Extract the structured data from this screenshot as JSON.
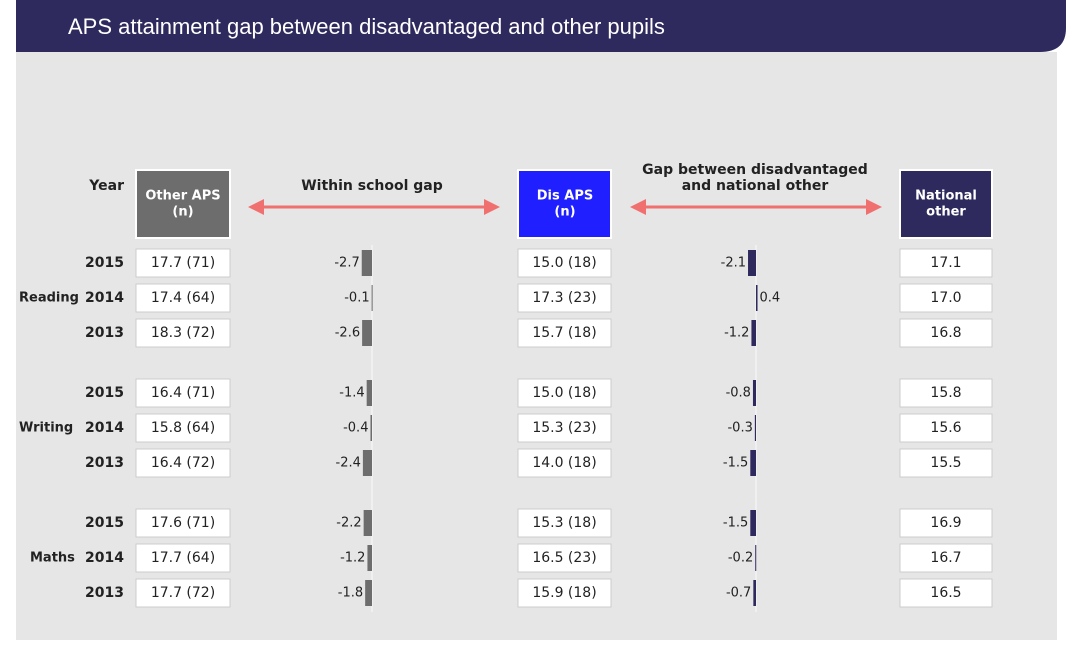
{
  "header": {
    "title": "APS attainment gap between disadvantaged and other pupils"
  },
  "columns": {
    "year": "Year",
    "other": [
      "Other APS",
      "(n)"
    ],
    "within_gap": "Within school gap",
    "dis": [
      "Dis APS",
      "(n)"
    ],
    "national_gap": [
      "Gap between disadvantaged",
      "and national other"
    ],
    "national": [
      "National",
      "other"
    ]
  },
  "groups": [
    {
      "subject": "Reading",
      "rows": [
        {
          "year": 2015,
          "other": "17.7 (71)",
          "within_gap": -2.7,
          "dis": "15.0 (18)",
          "national_gap": -2.1,
          "national": "17.1"
        },
        {
          "year": 2014,
          "other": "17.4 (64)",
          "within_gap": -0.1,
          "dis": "17.3 (23)",
          "national_gap": 0.4,
          "national": "17.0"
        },
        {
          "year": 2013,
          "other": "18.3 (72)",
          "within_gap": -2.6,
          "dis": "15.7 (18)",
          "national_gap": -1.2,
          "national": "16.8"
        }
      ]
    },
    {
      "subject": "Writing",
      "rows": [
        {
          "year": 2015,
          "other": "16.4 (71)",
          "within_gap": -1.4,
          "dis": "15.0 (18)",
          "national_gap": -0.8,
          "national": "15.8"
        },
        {
          "year": 2014,
          "other": "15.8 (64)",
          "within_gap": -0.4,
          "dis": "15.3 (23)",
          "national_gap": -0.3,
          "national": "15.6"
        },
        {
          "year": 2013,
          "other": "16.4 (72)",
          "within_gap": -2.4,
          "dis": "14.0 (18)",
          "national_gap": -1.5,
          "national": "15.5"
        }
      ]
    },
    {
      "subject": "Maths",
      "rows": [
        {
          "year": 2015,
          "other": "17.6 (71)",
          "within_gap": -2.2,
          "dis": "15.3 (18)",
          "national_gap": -1.5,
          "national": "16.9"
        },
        {
          "year": 2014,
          "other": "17.7 (64)",
          "within_gap": -1.2,
          "dis": "16.5 (23)",
          "national_gap": -0.2,
          "national": "16.7"
        },
        {
          "year": 2013,
          "other": "17.7 (72)",
          "within_gap": -1.8,
          "dis": "15.9 (18)",
          "national_gap": -0.7,
          "national": "16.5"
        }
      ]
    }
  ]
}
